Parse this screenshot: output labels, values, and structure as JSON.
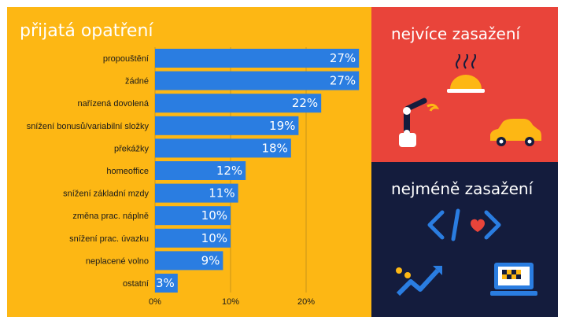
{
  "left_title": "přijatá opatření",
  "top_right_title": "nejvíce zasažení",
  "bottom_right_title": "nejméně zasažení",
  "colors": {
    "panel_left": "#fdb714",
    "panel_top_right": "#e9443a",
    "panel_bottom_right": "#141c3d",
    "bar": "#2a7de1",
    "grid": "#c9961a"
  },
  "icons_top": [
    "cloche-icon",
    "robot-arm-icon",
    "car-icon"
  ],
  "icons_bottom": [
    "code-heart-icon",
    "trend-chart-icon",
    "laptop-icon"
  ],
  "chart_data": {
    "type": "bar",
    "orientation": "horizontal",
    "categories": [
      "propouštění",
      "žádné",
      "nařízená dovolená",
      "snížení bonusů/variabilní složky",
      "překážky",
      "homeoffice",
      "snížení základní mzdy",
      "změna prac. náplně",
      "snížení prac. úvazku",
      "neplacené volno",
      "ostatní"
    ],
    "values": [
      27,
      27,
      22,
      19,
      18,
      12,
      11,
      10,
      10,
      9,
      3
    ],
    "value_labels": [
      "27%",
      "27%",
      "22%",
      "19%",
      "18%",
      "12%",
      "11%",
      "10%",
      "10%",
      "9%",
      "3%"
    ],
    "x_ticks": [
      0,
      10,
      20
    ],
    "x_tick_labels": [
      "0%",
      "10%",
      "20%"
    ],
    "xlim": [
      0,
      27
    ],
    "grid": "vertical",
    "title": "přijatá opatření"
  }
}
